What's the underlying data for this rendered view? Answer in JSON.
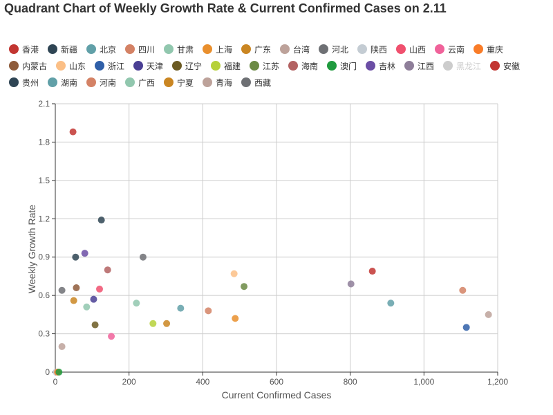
{
  "chart_data": {
    "type": "scatter",
    "title": "Quadrant Chart of Weekly Growth Rate & Current Confirmed Cases on 2.11",
    "xlabel": "Current Confirmed Cases",
    "ylabel": "Weekly Growth Rate",
    "xlim": [
      0,
      1200
    ],
    "ylim": [
      0,
      2.1
    ],
    "x_ticks": [
      "0",
      "200",
      "400",
      "600",
      "800",
      "1,000",
      "1,200"
    ],
    "y_ticks": [
      "0",
      "0.3",
      "0.6",
      "0.9",
      "1.2",
      "1.5",
      "1.8",
      "2.1"
    ],
    "grid": true,
    "legend_position": "top",
    "series": [
      {
        "name": "香港",
        "color": "#c23531",
        "x": 860,
        "y": 0.79,
        "visible": true
      },
      {
        "name": "新疆",
        "color": "#2f4554",
        "x": 55,
        "y": 0.9,
        "visible": true
      },
      {
        "name": "北京",
        "color": "#61a0a8",
        "x": 340,
        "y": 0.5,
        "visible": true
      },
      {
        "name": "四川",
        "color": "#d48265",
        "x": 1105,
        "y": 0.64,
        "visible": true
      },
      {
        "name": "甘肃",
        "color": "#91c7ae",
        "x": 220,
        "y": 0.54,
        "visible": true
      },
      {
        "name": "上海",
        "color": "#e98f2d",
        "x": 488,
        "y": 0.42,
        "visible": true
      },
      {
        "name": "广东",
        "color": "#ca8622",
        "x": 302,
        "y": 0.38,
        "visible": true
      },
      {
        "name": "台湾",
        "color": "#bda29a",
        "x": 1175,
        "y": 0.45,
        "visible": true
      },
      {
        "name": "河北",
        "color": "#6e7074",
        "x": 18,
        "y": 0.64,
        "visible": true
      },
      {
        "name": "陕西",
        "color": "#c4ccd3",
        "x": 2,
        "y": 0,
        "visible": true
      },
      {
        "name": "山西",
        "color": "#f0506e",
        "x": 120,
        "y": 0.65,
        "visible": true
      },
      {
        "name": "云南",
        "color": "#f0629a",
        "x": 152,
        "y": 0.28,
        "visible": true
      },
      {
        "name": "重庆",
        "color": "#f97c28",
        "x": 6,
        "y": 0,
        "visible": true
      },
      {
        "name": "内蒙古",
        "color": "#8e5b3a",
        "x": 57,
        "y": 0.66,
        "visible": true
      },
      {
        "name": "山东",
        "color": "#fbbf86",
        "x": 485,
        "y": 0.77,
        "visible": true
      },
      {
        "name": "浙江",
        "color": "#2f5fa8",
        "x": 1115,
        "y": 0.35,
        "visible": true
      },
      {
        "name": "天津",
        "color": "#4a3f94",
        "x": 104,
        "y": 0.57,
        "visible": true
      },
      {
        "name": "辽宁",
        "color": "#6b5a22",
        "x": 108,
        "y": 0.37,
        "visible": true
      },
      {
        "name": "福建",
        "color": "#b6d13a",
        "x": 265,
        "y": 0.38,
        "visible": true
      },
      {
        "name": "江苏",
        "color": "#6b8a44",
        "x": 512,
        "y": 0.67,
        "visible": true
      },
      {
        "name": "海南",
        "color": "#b36262",
        "x": 142,
        "y": 0.8,
        "visible": true
      },
      {
        "name": "澳门",
        "color": "#1f9a3e",
        "x": 10,
        "y": 0,
        "visible": true
      },
      {
        "name": "吉林",
        "color": "#6b4ea5",
        "x": 80,
        "y": 0.93,
        "visible": true
      },
      {
        "name": "江西",
        "color": "#8e7e99",
        "x": 802,
        "y": 0.69,
        "visible": true
      },
      {
        "name": "黑龙江",
        "color": "#cccccc",
        "x": 0,
        "y": 0,
        "visible": false
      },
      {
        "name": "安徽",
        "color": "#c23531",
        "x": 48,
        "y": 1.88,
        "visible": true
      },
      {
        "name": "贵州",
        "color": "#2f4554",
        "x": 125,
        "y": 1.19,
        "visible": true
      },
      {
        "name": "湖南",
        "color": "#61a0a8",
        "x": 910,
        "y": 0.54,
        "visible": true
      },
      {
        "name": "河南",
        "color": "#d48265",
        "x": 415,
        "y": 0.48,
        "visible": true
      },
      {
        "name": "广西",
        "color": "#91c7ae",
        "x": 85,
        "y": 0.51,
        "visible": true
      },
      {
        "name": "宁夏",
        "color": "#ca8622",
        "x": 50,
        "y": 0.56,
        "visible": true
      },
      {
        "name": "青海",
        "color": "#bda29a",
        "x": 18,
        "y": 0.2,
        "visible": true
      },
      {
        "name": "西藏",
        "color": "#6e7074",
        "x": 238,
        "y": 0.9,
        "visible": true
      }
    ]
  }
}
